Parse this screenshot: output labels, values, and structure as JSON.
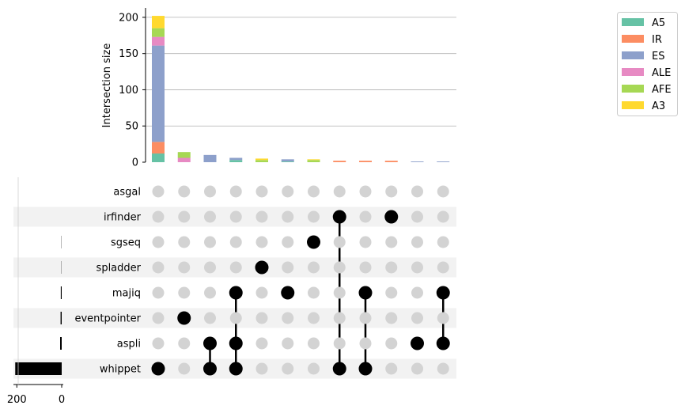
{
  "chart_data": {
    "type": "upset",
    "ylabel": "Intersection size",
    "yticks": [
      0,
      50,
      100,
      150,
      200
    ],
    "ylim": [
      0,
      213
    ],
    "set_size_ticks": [
      200,
      0
    ],
    "set_size_lim": [
      0,
      215
    ],
    "sets": [
      "asgal",
      "irfinder",
      "sgseq",
      "spladder",
      "majiq",
      "eventpointer",
      "aspli",
      "whippet"
    ],
    "set_sizes": [
      0,
      0,
      1,
      1,
      4,
      5,
      7,
      207
    ],
    "categories": [
      "A5",
      "IR",
      "ES",
      "ALE",
      "AFE",
      "A3"
    ],
    "colors": {
      "A5": "#66c2a5",
      "IR": "#fc8d62",
      "ES": "#8da0cb",
      "ALE": "#e78ac3",
      "AFE": "#a6d854",
      "A3": "#ffd92f"
    },
    "intersections": [
      {
        "members": [
          "whippet"
        ],
        "A5": 12,
        "IR": 16,
        "ES": 133,
        "ALE": 12,
        "AFE": 12,
        "A3": 17
      },
      {
        "members": [
          "eventpointer"
        ],
        "A5": 0,
        "IR": 0,
        "ES": 0,
        "ALE": 6,
        "AFE": 8,
        "A3": 0
      },
      {
        "members": [
          "aspli",
          "whippet"
        ],
        "A5": 0,
        "IR": 0,
        "ES": 10,
        "ALE": 0,
        "AFE": 0,
        "A3": 0
      },
      {
        "members": [
          "majiq",
          "aspli",
          "whippet"
        ],
        "A5": 3,
        "IR": 0,
        "ES": 3,
        "ALE": 0,
        "AFE": 0,
        "A3": 0
      },
      {
        "members": [
          "spladder"
        ],
        "A5": 0,
        "IR": 0,
        "ES": 0,
        "ALE": 0,
        "AFE": 3,
        "A3": 2
      },
      {
        "members": [
          "majiq"
        ],
        "A5": 1,
        "IR": 0,
        "ES": 3,
        "ALE": 0,
        "AFE": 0,
        "A3": 0
      },
      {
        "members": [
          "sgseq"
        ],
        "A5": 0,
        "IR": 0,
        "ES": 0,
        "ALE": 0,
        "AFE": 3,
        "A3": 1
      },
      {
        "members": [
          "irfinder",
          "whippet"
        ],
        "A5": 0,
        "IR": 2,
        "ES": 0,
        "ALE": 0,
        "AFE": 0,
        "A3": 0
      },
      {
        "members": [
          "majiq",
          "whippet"
        ],
        "A5": 0,
        "IR": 2,
        "ES": 0,
        "ALE": 0,
        "AFE": 0,
        "A3": 0
      },
      {
        "members": [
          "irfinder"
        ],
        "A5": 0,
        "IR": 2,
        "ES": 0,
        "ALE": 0,
        "AFE": 0,
        "A3": 0
      },
      {
        "members": [
          "aspli"
        ],
        "A5": 0,
        "IR": 0,
        "ES": 1,
        "ALE": 0,
        "AFE": 0,
        "A3": 0
      },
      {
        "members": [
          "majiq",
          "aspli"
        ],
        "A5": 0,
        "IR": 0,
        "ES": 1,
        "ALE": 0,
        "AFE": 0,
        "A3": 0
      }
    ],
    "legend_position": "top-right"
  }
}
